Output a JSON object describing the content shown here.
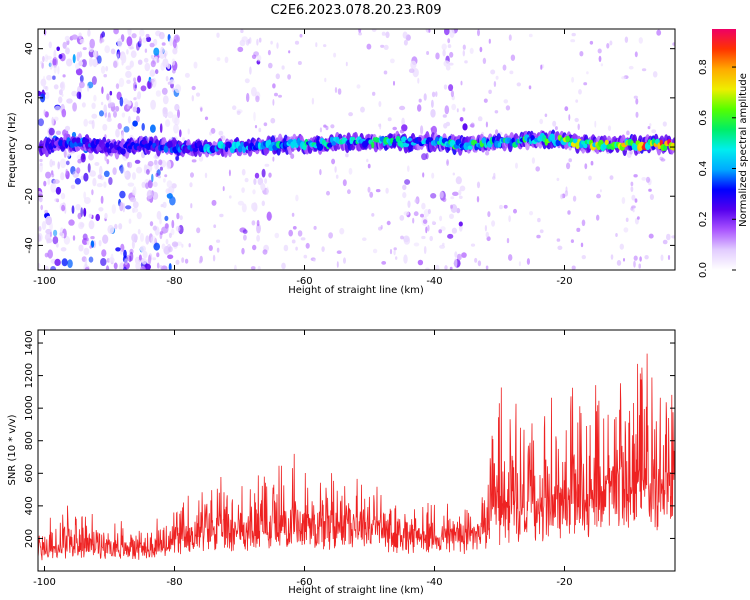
{
  "title": "C2E6.2023.078.20.23.R09",
  "colors": {
    "snr_line": "#ee2222",
    "axis": "#000000"
  },
  "chart_data": [
    {
      "type": "heatmap",
      "xlabel": "Height of straight line (km)",
      "ylabel": "Frequency (Hz)",
      "xlim": [
        -101,
        -3
      ],
      "ylim": [
        -50,
        48
      ],
      "x_ticks": [
        -100,
        -80,
        -60,
        -40,
        -20
      ],
      "x_tick_labels": [
        "-100",
        "-80",
        "-60",
        "-40",
        "-20"
      ],
      "y_ticks": [
        -40,
        -20,
        0,
        20,
        40
      ],
      "y_tick_labels": [
        "-40",
        "-20",
        "0",
        "20",
        "40"
      ],
      "grid": false,
      "colorbar": {
        "label": "Normalized spectral amplitude",
        "range": [
          0,
          0.95
        ],
        "ticks": [
          0.0,
          0.2,
          0.4,
          0.6,
          0.8
        ],
        "tick_labels": [
          "0.0",
          "0.2",
          "0.4",
          "0.6",
          "0.8"
        ],
        "colors": [
          "#ffffff",
          "#e2ccff",
          "#aa55ff",
          "#5500ee",
          "#0000ff",
          "#00aaff",
          "#00eeee",
          "#00ee66",
          "#55ff00",
          "#eeee00",
          "#ffaa00",
          "#ff3300",
          "#ee0066"
        ]
      },
      "ridge": {
        "description_values": "peak frequency (Hz) and amplitude vs height",
        "height_km": [
          -100,
          -97,
          -94,
          -91,
          -88,
          -85,
          -82,
          -79,
          -76,
          -73,
          -70,
          -67,
          -64,
          -61,
          -58,
          -55,
          -52,
          -49,
          -46,
          -43,
          -40,
          -37,
          -34,
          -31,
          -28,
          -25,
          -22,
          -19,
          -16,
          -13,
          -10,
          -7,
          -4
        ],
        "freq_hz": [
          0,
          1,
          2,
          0,
          -1,
          1,
          0,
          0,
          0,
          0,
          0,
          0,
          1,
          1,
          1,
          2,
          2,
          2,
          2,
          2,
          2,
          1,
          1,
          2,
          2,
          3,
          3,
          2,
          1,
          1,
          1,
          1,
          1
        ],
        "amplitude": [
          0.25,
          0.35,
          0.4,
          0.3,
          0.3,
          0.3,
          0.35,
          0.4,
          0.45,
          0.45,
          0.5,
          0.45,
          0.5,
          0.55,
          0.5,
          0.5,
          0.5,
          0.55,
          0.5,
          0.45,
          0.5,
          0.55,
          0.55,
          0.55,
          0.55,
          0.55,
          0.6,
          0.65,
          0.7,
          0.75,
          0.8,
          0.85,
          0.95
        ]
      },
      "bands": [
        {
          "from_km": -101,
          "to_km": -79,
          "density": 0.8
        },
        {
          "from_km": -70,
          "to_km": -65,
          "density": 0.3
        },
        {
          "from_km": -45,
          "to_km": -40,
          "density": 0.3
        },
        {
          "from_km": -39,
          "to_km": -35,
          "density": 0.35
        }
      ]
    },
    {
      "type": "line",
      "xlabel": "Height of straight line (km)",
      "ylabel": "SNR (10 * v/v)",
      "xlim": [
        -101,
        -3
      ],
      "ylim": [
        0,
        1480
      ],
      "x_ticks": [
        -100,
        -80,
        -60,
        -40,
        -20
      ],
      "x_tick_labels": [
        "-100",
        "-80",
        "-60",
        "-40",
        "-20"
      ],
      "y_ticks": [
        200,
        400,
        600,
        800,
        1000,
        1200,
        1400
      ],
      "y_tick_labels": [
        "200",
        "400",
        "600",
        "800",
        "1000",
        "1200",
        "1400"
      ],
      "grid": false,
      "series": [
        {
          "x": [
            -101,
            -98,
            -95,
            -92,
            -89,
            -86,
            -83,
            -80,
            -77,
            -74,
            -71,
            -68,
            -65,
            -62,
            -59,
            -56,
            -53,
            -50,
            -47,
            -44,
            -41,
            -38,
            -35,
            -32,
            -30,
            -28,
            -26,
            -24,
            -22,
            -20,
            -18,
            -16,
            -14,
            -12,
            -10,
            -8,
            -6,
            -4,
            -3
          ],
          "baseline": [
            100,
            110,
            130,
            140,
            130,
            120,
            120,
            150,
            200,
            230,
            220,
            210,
            240,
            260,
            250,
            230,
            260,
            250,
            200,
            190,
            180,
            200,
            170,
            230,
            280,
            300,
            320,
            310,
            330,
            360,
            380,
            370,
            420,
            450,
            450,
            430,
            440,
            470,
            520
          ],
          "envelope": [
            300,
            400,
            350,
            300,
            300,
            250,
            300,
            330,
            450,
            500,
            500,
            550,
            600,
            700,
            580,
            550,
            550,
            500,
            450,
            420,
            380,
            380,
            380,
            470,
            1200,
            1000,
            900,
            850,
            1000,
            1050,
            1100,
            950,
            1100,
            1200,
            1200,
            1400,
            1250,
            1150,
            1050
          ]
        }
      ]
    }
  ]
}
